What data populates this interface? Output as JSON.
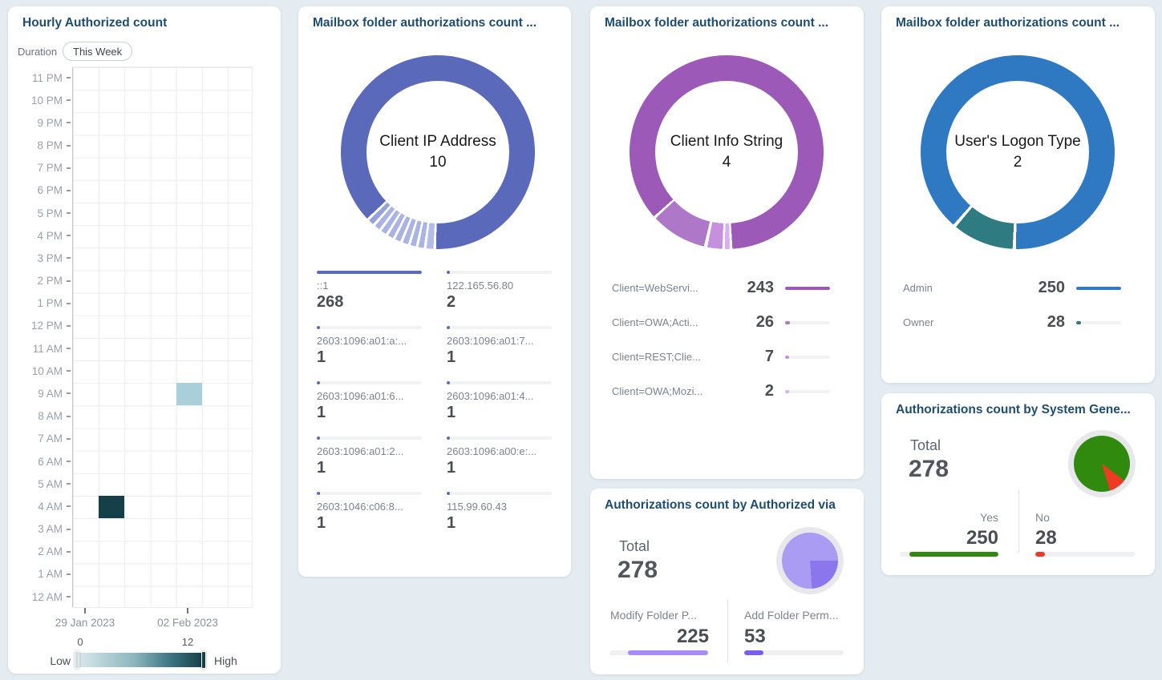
{
  "page": {
    "background": "#e4ecf2"
  },
  "cards": {
    "hourly": {
      "title": "Hourly Authorized count",
      "duration_label": "Duration",
      "duration_value": "This Week",
      "hours_top_to_bottom": [
        "11 PM",
        "10 PM",
        "9 PM",
        "8 PM",
        "7 PM",
        "6 PM",
        "5 PM",
        "4 PM",
        "3 PM",
        "2 PM",
        "1 PM",
        "12 PM",
        "11 AM",
        "10 AM",
        "9 AM",
        "8 AM",
        "7 AM",
        "6 AM",
        "5 AM",
        "4 AM",
        "3 AM",
        "2 AM",
        "1 AM",
        "12 AM"
      ],
      "x_labels": [
        "29 Jan 2023",
        "02 Feb 2023"
      ],
      "columns": 7,
      "cells": [
        {
          "column": 2,
          "hour": "4 AM",
          "value": 12,
          "color": "#153f49"
        },
        {
          "column": 5,
          "hour": "9 AM",
          "value": 2,
          "color": "#a9cfda"
        }
      ],
      "legend": {
        "low_label": "Low",
        "high_label": "High",
        "min": "0",
        "max": "12",
        "gradient_from": "#d8e8ec",
        "gradient_to": "#153f49"
      }
    },
    "ip": {
      "title": "Mailbox folder authorizations count ...",
      "center_title": "Client IP Address",
      "center_value": "10",
      "accent": "#5b69bb",
      "items": [
        {
          "label": "::1",
          "value": 268
        },
        {
          "label": "122.165.56.80",
          "value": 2
        },
        {
          "label": "2603:1096:a01:a:...",
          "value": 1
        },
        {
          "label": "2603:1096:a01:7...",
          "value": 1
        },
        {
          "label": "2603:1096:a01:6...",
          "value": 1
        },
        {
          "label": "2603:1096:a01:4...",
          "value": 1
        },
        {
          "label": "2603:1096:a01:2...",
          "value": 1
        },
        {
          "label": "2603:1096:a00:e:...",
          "value": 1
        },
        {
          "label": "2603:1046:c06:8...",
          "value": 1
        },
        {
          "label": "115.99.60.43",
          "value": 1
        }
      ]
    },
    "client_info": {
      "title": "Mailbox folder authorizations count ...",
      "center_title": "Client Info String",
      "center_value": "4",
      "items": [
        {
          "label": "Client=WebServi...",
          "value": 243,
          "color": "#9c59b8"
        },
        {
          "label": "Client=OWA;Acti...",
          "value": 26,
          "color": "#ae77c8"
        },
        {
          "label": "Client=REST;Clie...",
          "value": 7,
          "color": "#c591de"
        },
        {
          "label": "Client=OWA;Mozi...",
          "value": 2,
          "color": "#d9aef2"
        }
      ]
    },
    "logon": {
      "title": "Mailbox folder authorizations count ...",
      "center_title": "User's Logon Type",
      "center_value": "2",
      "items": [
        {
          "label": "Admin",
          "value": 250,
          "color": "#2e79c2"
        },
        {
          "label": "Owner",
          "value": 28,
          "color": "#2e7b82"
        }
      ]
    },
    "authorized_via": {
      "title": "Authorizations count by Authorized via",
      "total_label": "Total",
      "total_value": "278",
      "total": 278,
      "items": [
        {
          "label": "Modify Folder P...",
          "value": 225,
          "color": "#a78bfa",
          "fill_align": "right"
        },
        {
          "label": "Add Folder Perm...",
          "value": 53,
          "color": "#7c5cf0",
          "fill_align": "left"
        }
      ]
    },
    "system_generated": {
      "title": "Authorizations count by System Gene...",
      "total_label": "Total",
      "total_value": "278",
      "total": 278,
      "items": [
        {
          "label": "Yes",
          "value": 250,
          "color": "#2f8a0e",
          "fill_align": "right"
        },
        {
          "label": "No",
          "value": 28,
          "color": "#ee3b24",
          "fill_align": "left"
        }
      ]
    }
  },
  "chart_data": [
    {
      "type": "heatmap",
      "title": "Hourly Authorized count",
      "xlabel_ticks": [
        "29 Jan 2023",
        "02 Feb 2023"
      ],
      "columns": 7,
      "ylabel_rows": [
        "12 AM",
        "1 AM",
        "2 AM",
        "3 AM",
        "4 AM",
        "5 AM",
        "6 AM",
        "7 AM",
        "8 AM",
        "9 AM",
        "10 AM",
        "11 AM",
        "12 PM",
        "1 PM",
        "2 PM",
        "3 PM",
        "4 PM",
        "5 PM",
        "6 PM",
        "7 PM",
        "8 PM",
        "9 PM",
        "10 PM",
        "11 PM"
      ],
      "value_range": [
        0,
        12
      ],
      "points": [
        {
          "column": 2,
          "hour": "4 AM",
          "value": 12
        },
        {
          "column": 5,
          "hour": "9 AM",
          "value": 2
        }
      ],
      "legend": "Low → High color scale, teal"
    },
    {
      "type": "pie",
      "subtype": "donut",
      "title": "Client IP Address",
      "distinct_count": 10,
      "categories": [
        "::1",
        "122.165.56.80",
        "2603:1096:a01:a:...",
        "2603:1096:a01:7...",
        "2603:1096:a01:6...",
        "2603:1096:a01:4...",
        "2603:1096:a01:2...",
        "2603:1096:a00:e:...",
        "2603:1046:c06:8...",
        "115.99.60.43"
      ],
      "values": [
        268,
        2,
        1,
        1,
        1,
        1,
        1,
        1,
        1,
        1
      ]
    },
    {
      "type": "pie",
      "subtype": "donut",
      "title": "Client Info String",
      "distinct_count": 4,
      "categories": [
        "Client=WebServi...",
        "Client=OWA;Acti...",
        "Client=REST;Clie...",
        "Client=OWA;Mozi..."
      ],
      "values": [
        243,
        26,
        7,
        2
      ]
    },
    {
      "type": "pie",
      "subtype": "donut",
      "title": "User's Logon Type",
      "distinct_count": 2,
      "categories": [
        "Admin",
        "Owner"
      ],
      "values": [
        250,
        28
      ]
    },
    {
      "type": "pie",
      "title": "Authorizations count by Authorized via",
      "total": 278,
      "categories": [
        "Modify Folder P...",
        "Add Folder Perm..."
      ],
      "values": [
        225,
        53
      ]
    },
    {
      "type": "pie",
      "title": "Authorizations count by System Gene...",
      "total": 278,
      "categories": [
        "Yes",
        "No"
      ],
      "values": [
        250,
        28
      ]
    }
  ]
}
